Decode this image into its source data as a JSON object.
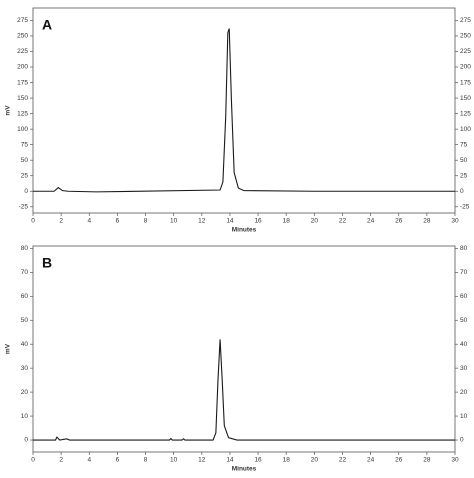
{
  "chart_data": [
    {
      "type": "line",
      "panel_label": "A",
      "xlabel": "Minutes",
      "ylabel": "mV",
      "x": [
        0,
        1.5,
        1.8,
        2.1,
        2.5,
        4.5,
        13.3,
        13.5,
        13.7,
        13.85,
        13.95,
        14.1,
        14.3,
        14.6,
        15,
        20,
        30
      ],
      "values": [
        0,
        0,
        6,
        1,
        0,
        -1,
        2,
        15,
        120,
        255,
        262,
        150,
        30,
        5,
        1,
        0,
        0
      ],
      "color": "#1a1a1a",
      "xlim": [
        0,
        30
      ],
      "xticks": [
        0,
        2,
        4,
        6,
        8,
        10,
        12,
        14,
        16,
        18,
        20,
        22,
        24,
        26,
        28,
        30
      ],
      "ylim": [
        -35,
        295
      ],
      "yticks": [
        -25,
        0,
        25,
        50,
        75,
        100,
        125,
        150,
        175,
        200,
        225,
        250,
        275
      ]
    },
    {
      "type": "line",
      "panel_label": "B",
      "xlabel": "Minutes",
      "ylabel": "mV",
      "x": [
        0,
        1.6,
        1.7,
        1.9,
        2.4,
        2.6,
        9.7,
        9.8,
        9.9,
        10.6,
        10.7,
        10.8,
        12.8,
        13.0,
        13.15,
        13.3,
        13.45,
        13.6,
        13.9,
        14.5,
        30
      ],
      "values": [
        0,
        0,
        1.2,
        0,
        0.5,
        0,
        0,
        0.6,
        0,
        0,
        0.5,
        0,
        0,
        3,
        25,
        42,
        25,
        6,
        1,
        0,
        0
      ],
      "color": "#1a1a1a",
      "xlim": [
        0,
        30
      ],
      "xticks": [
        0,
        2,
        4,
        6,
        8,
        10,
        12,
        14,
        16,
        18,
        20,
        22,
        24,
        26,
        28,
        30
      ],
      "ylim": [
        -5,
        81
      ],
      "yticks": [
        0,
        10,
        20,
        30,
        40,
        50,
        60,
        70,
        80
      ]
    }
  ]
}
